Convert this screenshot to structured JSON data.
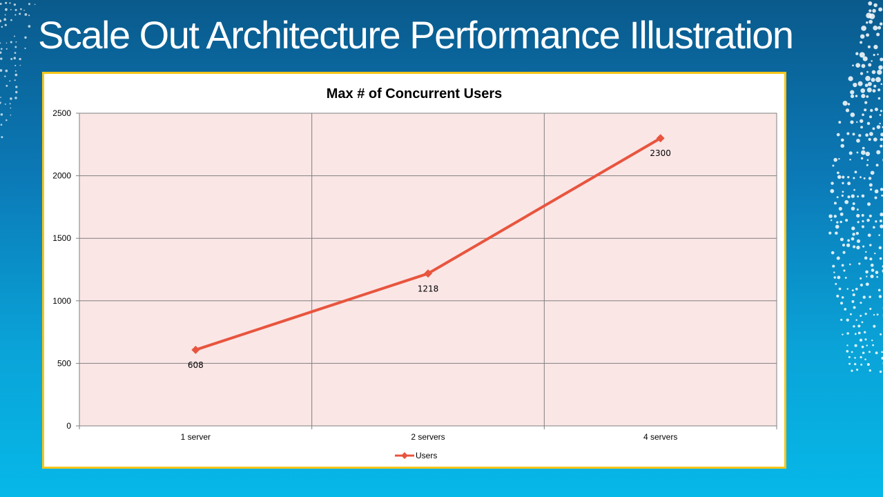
{
  "slide": {
    "title": "Scale Out Architecture Performance Illustration"
  },
  "colors": {
    "background_top": "#0a5a8c",
    "background_bottom": "#06b8e8",
    "frame_border": "#f5c518",
    "plot_background": "#fbe6e6",
    "series_line": "#e8553e"
  },
  "chart_data": {
    "type": "line",
    "title": "Max # of Concurrent Users",
    "xlabel": "",
    "ylabel": "",
    "categories": [
      "1 server",
      "2 servers",
      "4 servers"
    ],
    "series": [
      {
        "name": "Users",
        "values": [
          608,
          1218,
          2300
        ],
        "labels": [
          "608",
          "1218",
          "2300"
        ],
        "color": "#e8553e",
        "marker": "diamond"
      }
    ],
    "ylim": [
      0,
      2500
    ],
    "yticks": [
      "0",
      "500",
      "1000",
      "1500",
      "2000",
      "2500"
    ],
    "grid": true,
    "legend": "bottom"
  }
}
